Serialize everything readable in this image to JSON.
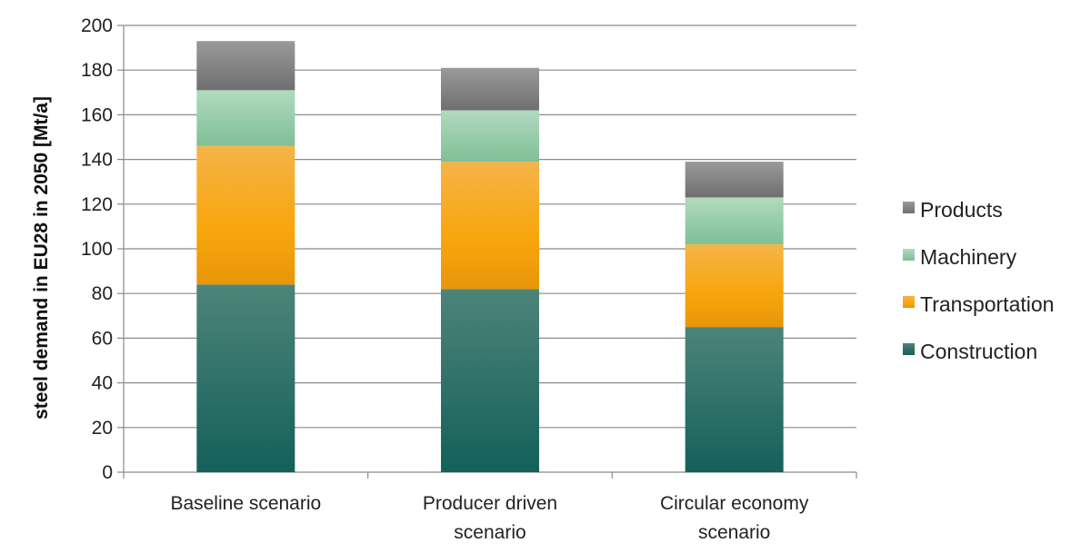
{
  "chart_data": {
    "type": "bar",
    "stacked": true,
    "title": "",
    "xlabel": "",
    "ylabel": "steel demand in EU28 in 2050 [Mt/a]",
    "ylim": [
      0,
      200
    ],
    "yticks": [
      0,
      20,
      40,
      60,
      80,
      100,
      120,
      140,
      160,
      180,
      200
    ],
    "grid": true,
    "legend_position": "right",
    "categories": [
      [
        "Baseline scenario"
      ],
      [
        "Producer driven",
        "scenario"
      ],
      [
        "Circular economy",
        "scenario"
      ]
    ],
    "series": [
      {
        "name": "Construction",
        "color": "#1e6b62",
        "values": [
          84,
          82,
          65
        ]
      },
      {
        "name": "Transportation",
        "color": "#f5a623",
        "values": [
          62,
          57,
          37
        ]
      },
      {
        "name": "Machinery",
        "color": "#8fc9a3",
        "values": [
          25,
          23,
          21
        ]
      },
      {
        "name": "Products",
        "color": "#8e8e8e",
        "values": [
          22,
          19,
          16
        ]
      }
    ],
    "legend_order": [
      "Products",
      "Machinery",
      "Transportation",
      "Construction"
    ]
  }
}
